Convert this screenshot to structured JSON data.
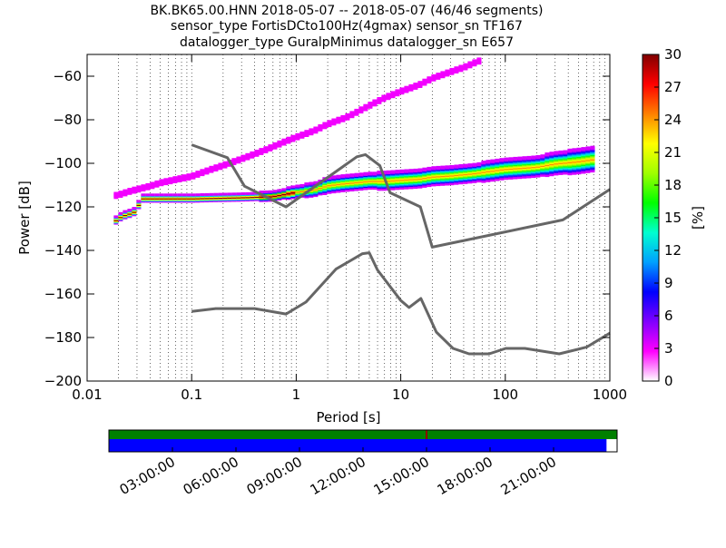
{
  "chart_data": [
    {
      "type": "heatmap",
      "title_lines": [
        "BK.BK65.00.HNN   2018-05-07 -- 2018-05-07  (46/46 segments)",
        "sensor_type FortisDCto100Hz(4gmax) sensor_sn TF167",
        "datalogger_type GuralpMinimus datalogger_sn E657"
      ],
      "xlabel": "Period [s]",
      "ylabel": "Power [dB]",
      "xscale": "log",
      "xlim": [
        0.01,
        1000
      ],
      "ylim": [
        -200,
        -50
      ],
      "x_ticks": [
        0.01,
        0.1,
        1,
        10,
        100,
        1000
      ],
      "x_tick_labels": [
        "0.01",
        "0.1",
        "1",
        "10",
        "100",
        "1000"
      ],
      "y_ticks": [
        -200,
        -180,
        -160,
        -140,
        -120,
        -100,
        -80,
        -60
      ],
      "y_tick_labels": [
        "−200",
        "−180",
        "−160",
        "−140",
        "−120",
        "−100",
        "−80",
        "−60"
      ],
      "grid": "dotted vertical lines",
      "noise_models": {
        "color": "#666666",
        "high": [
          {
            "x": 0.1,
            "y": -91.5
          },
          {
            "x": 0.22,
            "y": -97.4
          },
          {
            "x": 0.32,
            "y": -110.5
          },
          {
            "x": 0.8,
            "y": -120
          },
          {
            "x": 3.8,
            "y": -97
          },
          {
            "x": 4.6,
            "y": -96
          },
          {
            "x": 6.3,
            "y": -101
          },
          {
            "x": 7.9,
            "y": -113.5
          },
          {
            "x": 15.4,
            "y": -120
          },
          {
            "x": 20,
            "y": -138.5
          },
          {
            "x": 354.8,
            "y": -126
          },
          {
            "x": 1000,
            "y": -112
          }
        ],
        "low": [
          {
            "x": 0.1,
            "y": -168
          },
          {
            "x": 0.17,
            "y": -166.7
          },
          {
            "x": 0.4,
            "y": -166.7
          },
          {
            "x": 0.8,
            "y": -169.2
          },
          {
            "x": 1.24,
            "y": -163.7
          },
          {
            "x": 2.4,
            "y": -148.6
          },
          {
            "x": 4.3,
            "y": -141.5
          },
          {
            "x": 5,
            "y": -141.1
          },
          {
            "x": 6,
            "y": -149
          },
          {
            "x": 10,
            "y": -163
          },
          {
            "x": 12,
            "y": -166.2
          },
          {
            "x": 15.6,
            "y": -162.1
          },
          {
            "x": 21.9,
            "y": -177.5
          },
          {
            "x": 31.6,
            "y": -185
          },
          {
            "x": 45,
            "y": -187.5
          },
          {
            "x": 70,
            "y": -187.5
          },
          {
            "x": 101,
            "y": -185
          },
          {
            "x": 154,
            "y": -185
          },
          {
            "x": 328,
            "y": -187.5
          },
          {
            "x": 600,
            "y": -184.4
          },
          {
            "x": 1000,
            "y": -178
          }
        ]
      },
      "ppsd_bands": [
        {
          "x": [
            0.018,
            0.02,
            0.022,
            0.025,
            0.027,
            0.03,
            0.033,
            0.04,
            0.05,
            0.1,
            0.3,
            0.6,
            1,
            1.5,
            2,
            3,
            4,
            5,
            7,
            10,
            15,
            20,
            30,
            50,
            70,
            100,
            200,
            300,
            500,
            700
          ],
          "y": [
            -127,
            -125,
            -124,
            -123,
            -123,
            -121,
            -116,
            -116,
            -116,
            -116,
            -115.5,
            -115,
            -113,
            -112,
            -110,
            -109,
            -108.5,
            -108,
            -108,
            -107.5,
            -107,
            -106,
            -105.5,
            -104.5,
            -103.5,
            -102.5,
            -101.5,
            -100,
            -99,
            -98
          ],
          "spread": [
            1,
            1,
            1,
            1,
            1,
            1,
            1,
            1,
            1,
            1,
            1,
            1.5,
            2,
            2.5,
            3,
            3,
            3,
            3,
            3.5,
            3.5,
            3.5,
            3.5,
            3.5,
            3.5,
            4,
            4,
            4,
            4.5,
            5,
            5
          ]
        },
        {
          "x": [
            0.018,
            0.02,
            0.025,
            0.03,
            0.04,
            0.05,
            0.07,
            0.1,
            0.15,
            0.2,
            0.3,
            0.5,
            0.7,
            1,
            1.5,
            2,
            3,
            4,
            5,
            7,
            10,
            15,
            20,
            30,
            40,
            50,
            60
          ],
          "y": [
            -115,
            -114.5,
            -113,
            -112,
            -110.5,
            -109,
            -107.5,
            -106,
            -103,
            -101,
            -98,
            -94,
            -91,
            -88,
            -85,
            -82,
            -79,
            -76,
            -73.5,
            -70,
            -67,
            -64,
            -61,
            -58,
            -56,
            -54,
            -52.5
          ],
          "spread": [
            0.7,
            0.7,
            0.7,
            0.7,
            0.7,
            0.7,
            0.7,
            0.7,
            0.7,
            0.7,
            0.7,
            0.7,
            0.7,
            0.7,
            0.7,
            0.7,
            0.7,
            0.7,
            0.7,
            0.7,
            0.7,
            0.7,
            0.7,
            0.7,
            0.7,
            0.7,
            0.7
          ]
        }
      ],
      "colorbar": {
        "label": "[%]",
        "min": 0,
        "max": 30,
        "ticks": [
          0,
          3,
          6,
          9,
          12,
          15,
          18,
          21,
          24,
          27,
          30
        ],
        "tick_labels": [
          "0",
          "3",
          "6",
          "9",
          "12",
          "15",
          "18",
          "21",
          "24",
          "27",
          "30"
        ],
        "colors": [
          "#ffffff",
          "#ff00ff",
          "#8000ff",
          "#0000ff",
          "#00a0ff",
          "#00ffd0",
          "#00ff00",
          "#a0ff00",
          "#ffff00",
          "#ff8000",
          "#ff0000",
          "#800000"
        ]
      }
    },
    {
      "type": "timeline",
      "time_range_hours": [
        0,
        24
      ],
      "x_ticks_hours": [
        3,
        6,
        9,
        12,
        15,
        18,
        21
      ],
      "x_tick_labels": [
        "03:00:00",
        "06:00:00",
        "09:00:00",
        "12:00:00",
        "15:00:00",
        "18:00:00",
        "21:00:00"
      ],
      "data_available_color": "#008000",
      "used_color": "#0000ff",
      "data_available_range_hours": [
        0,
        24
      ],
      "used_range_hours": [
        0,
        23.5
      ],
      "gap_marker_hour": 15.0
    }
  ]
}
